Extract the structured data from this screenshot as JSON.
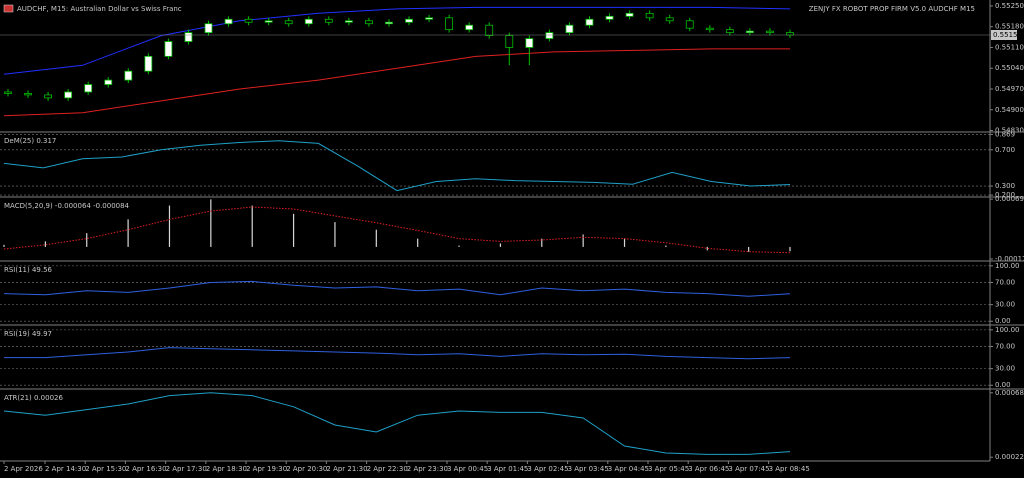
{
  "chart_data": [
    {
      "type": "candlestick",
      "title": "AUDCHF, M15:  Australian Dollar vs Swiss Franc",
      "annotation": "ZENJY FX ROBOT PROP FIRM  V5.0 AUDCHF M15",
      "current_price": 0.55152,
      "ylim": [
        0.54825,
        0.5527
      ],
      "yticks": [
        {
          "value": 0.5525,
          "label": "0.55250"
        },
        {
          "value": 0.5518,
          "label": "0.55180"
        },
        {
          "value": 0.5511,
          "label": "0.55110"
        },
        {
          "value": 0.5504,
          "label": "0.55040"
        },
        {
          "value": 0.5497,
          "label": "0.54970"
        },
        {
          "value": 0.549,
          "label": "0.54900"
        },
        {
          "value": 0.5483,
          "label": "0.54830"
        }
      ],
      "open": [
        0.5496,
        0.54955,
        0.5495,
        0.5494,
        0.5496,
        0.54985,
        0.55,
        0.5503,
        0.5508,
        0.5513,
        0.5516,
        0.5519,
        0.55205,
        0.55195,
        0.552,
        0.5519,
        0.55205,
        0.55195,
        0.552,
        0.5519,
        0.55195,
        0.55205,
        0.5521,
        0.5517,
        0.55185,
        0.5515,
        0.5511,
        0.5514,
        0.5516,
        0.55185,
        0.55205,
        0.55215,
        0.55225,
        0.5521,
        0.552,
        0.55175,
        0.5517,
        0.5516,
        0.55165,
        0.5516
      ],
      "high": [
        0.5497,
        0.54965,
        0.5496,
        0.5497,
        0.54995,
        0.5501,
        0.5504,
        0.5509,
        0.5514,
        0.5517,
        0.552,
        0.55215,
        0.55215,
        0.5521,
        0.5521,
        0.55215,
        0.55215,
        0.5521,
        0.5521,
        0.55205,
        0.55215,
        0.5522,
        0.5522,
        0.55195,
        0.55195,
        0.5516,
        0.5515,
        0.5517,
        0.55195,
        0.55215,
        0.55225,
        0.55235,
        0.55235,
        0.5522,
        0.5521,
        0.55185,
        0.5518,
        0.55175,
        0.55175,
        0.5517
      ],
      "low": [
        0.54945,
        0.5494,
        0.5493,
        0.5493,
        0.5495,
        0.54975,
        0.5499,
        0.5502,
        0.5507,
        0.5512,
        0.5515,
        0.5518,
        0.55185,
        0.55185,
        0.5518,
        0.5518,
        0.55185,
        0.55185,
        0.5518,
        0.5518,
        0.55185,
        0.55195,
        0.5516,
        0.5516,
        0.5514,
        0.5505,
        0.5505,
        0.5513,
        0.5515,
        0.55175,
        0.55195,
        0.55205,
        0.552,
        0.5519,
        0.55165,
        0.5516,
        0.5515,
        0.5515,
        0.5515,
        0.55142
      ],
      "close": [
        0.54955,
        0.5495,
        0.5494,
        0.5496,
        0.54985,
        0.55,
        0.5503,
        0.5508,
        0.5513,
        0.5516,
        0.5519,
        0.55205,
        0.55195,
        0.552,
        0.5519,
        0.55205,
        0.55195,
        0.552,
        0.5519,
        0.55195,
        0.55205,
        0.5521,
        0.5517,
        0.55185,
        0.5515,
        0.5511,
        0.5514,
        0.5516,
        0.55185,
        0.55205,
        0.55215,
        0.55225,
        0.5521,
        0.552,
        0.55175,
        0.5517,
        0.5516,
        0.55165,
        0.5516,
        0.55152
      ],
      "series": [
        {
          "color": "#2030ff",
          "values": [
            0.5502,
            0.5505,
            0.5515,
            0.552,
            0.55225,
            0.5524,
            0.55245,
            0.55245,
            0.55245,
            0.55245,
            0.5524
          ]
        },
        {
          "color": "#e02020",
          "values": [
            0.5488,
            0.5489,
            0.5493,
            0.5497,
            0.55,
            0.5504,
            0.5508,
            0.55095,
            0.551,
            0.55105,
            0.55105
          ]
        }
      ]
    },
    {
      "type": "line",
      "title": "DeM(25) 0.317",
      "ylim": [
        0.19,
        0.885
      ],
      "grid": true,
      "yticks": [
        0.869,
        {
          "value": 0.7,
          "label": "0.700"
        },
        {
          "value": 0.3,
          "label": "0.300"
        },
        {
          "value": 0.2,
          "label": "0.200"
        }
      ],
      "series": [
        {
          "color": "#1fa0c8",
          "values": [
            0.55,
            0.5,
            0.6,
            0.62,
            0.7,
            0.75,
            0.78,
            0.8,
            0.77,
            0.52,
            0.25,
            0.35,
            0.38,
            0.36,
            0.35,
            0.34,
            0.32,
            0.45,
            0.35,
            0.3,
            0.317
          ]
        }
      ]
    },
    {
      "type": "macd",
      "title": "MACD(5,20,9) -0.000064 -0.000084",
      "ylim": [
        -0.00019,
        0.00071
      ],
      "yticks": [
        0.000693,
        -0.000175
      ],
      "series": [
        {
          "color": "#d8d8d8",
          "style": "bars",
          "values": [
            3e-05,
            8e-05,
            0.0002,
            0.0004,
            0.0006,
            0.00069,
            0.0006,
            0.00048,
            0.00036,
            0.00025,
            0.00012,
            2e-05,
            5e-05,
            0.00012,
            0.00018,
            0.00012,
            2e-05,
            -5e-05,
            -7e-05,
            -6.4e-05
          ]
        },
        {
          "color": "#e02020",
          "style": "dotted",
          "values": [
            -3e-05,
            3e-05,
            0.00012,
            0.00025,
            0.0004,
            0.00052,
            0.00058,
            0.00055,
            0.00045,
            0.00035,
            0.00024,
            0.00012,
            8e-05,
            0.0001,
            0.00014,
            0.00012,
            6e-05,
            -2e-05,
            -7e-05,
            -8.4e-05
          ]
        }
      ]
    },
    {
      "type": "line",
      "title": "RSI(11) 49.56",
      "ylim": [
        -5,
        107
      ],
      "grid": true,
      "yticks": [
        {
          "value": 100,
          "label": "100.00"
        },
        {
          "value": 70,
          "label": "70.00"
        },
        {
          "value": 30,
          "label": "30.00"
        },
        {
          "value": 0,
          "label": "0.00"
        }
      ],
      "series": [
        {
          "color": "#3060e0",
          "values": [
            50,
            48,
            55,
            52,
            60,
            70,
            72,
            65,
            60,
            62,
            55,
            58,
            48,
            60,
            55,
            58,
            52,
            50,
            45,
            49.56
          ]
        }
      ]
    },
    {
      "type": "line",
      "title": "RSI(19) 49.97",
      "ylim": [
        -5,
        107
      ],
      "grid": true,
      "yticks": [
        {
          "value": 100,
          "label": "100.00"
        },
        {
          "value": 70,
          "label": "70.00"
        },
        {
          "value": 30,
          "label": "30.00"
        },
        {
          "value": 0,
          "label": "0.00"
        }
      ],
      "series": [
        {
          "color": "#3060e0",
          "values": [
            50,
            50,
            55,
            60,
            68,
            66,
            64,
            62,
            60,
            58,
            55,
            57,
            52,
            57,
            55,
            56,
            52,
            50,
            48,
            49.97
          ]
        }
      ]
    },
    {
      "type": "line",
      "title": "ATR(21) 0.00026",
      "ylim": [
        0.0002,
        0.0007
      ],
      "yticks": [
        0.00068,
        0.00022
      ],
      "series": [
        {
          "color": "#1fa0c8",
          "values": [
            0.00055,
            0.00052,
            0.00056,
            0.0006,
            0.00066,
            0.00068,
            0.00066,
            0.00058,
            0.00045,
            0.0004,
            0.00052,
            0.00055,
            0.00054,
            0.00054,
            0.0005,
            0.0003,
            0.00025,
            0.00024,
            0.00024,
            0.00026
          ]
        }
      ]
    }
  ],
  "time_axis": [
    "2 Apr 2026",
    "2 Apr 14:30",
    "2 Apr 15:30",
    "2 Apr 16:30",
    "2 Apr 17:30",
    "2 Apr 18:30",
    "2 Apr 19:30",
    "2 Apr 20:30",
    "2 Apr 21:30",
    "2 Apr 22:30",
    "2 Apr 23:30",
    "3 Apr 00:45",
    "3 Apr 01:45",
    "3 Apr 02:45",
    "3 Apr 03:45",
    "3 Apr 04:45",
    "3 Apr 05:45",
    "3 Apr 06:45",
    "3 Apr 07:45",
    "3 Apr 08:45"
  ]
}
